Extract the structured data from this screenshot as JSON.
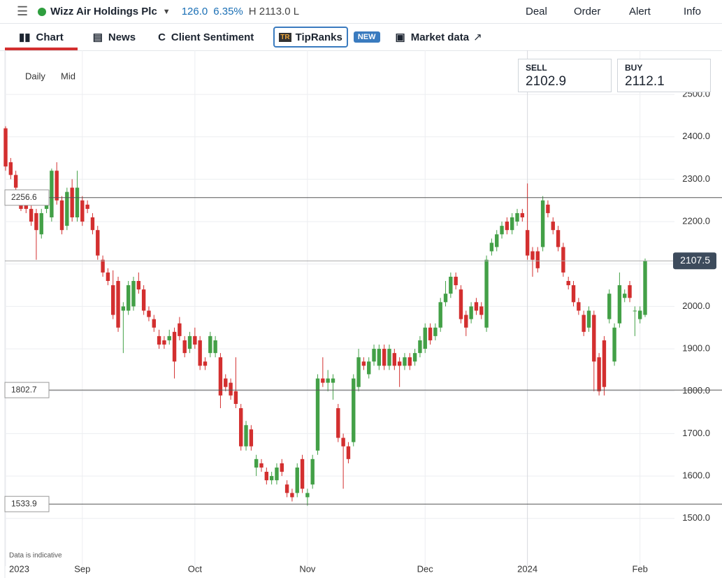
{
  "header": {
    "instrument": "Wizz Air Holdings Plc",
    "change": "126.0",
    "change_pct": "6.35%",
    "hl": "H 2113.0 L",
    "actions": [
      "Deal",
      "Order",
      "Alert",
      "Info"
    ]
  },
  "tabs": [
    "Chart",
    "News",
    "Client Sentiment",
    "TipRanks",
    "NEW",
    "Market data"
  ],
  "toolbar": [
    "Daily",
    "Mid"
  ],
  "quote": {
    "sell_label": "SELL",
    "sell": "2102.9",
    "buy_label": "BUY",
    "buy": "2112.1"
  },
  "note": "Data is indicative",
  "chart_data": {
    "type": "candlestick",
    "ylim": [
      1404,
      2599
    ],
    "yticks": [
      {
        "value": 1500,
        "label": "1500.0"
      },
      {
        "value": 1600,
        "label": "1600.0"
      },
      {
        "value": 1700,
        "label": "1700.0"
      },
      {
        "value": 1800,
        "label": "1800.0"
      },
      {
        "value": 1900,
        "label": "1900.0"
      },
      {
        "value": 2000,
        "label": "2000.0"
      },
      {
        "value": 2100,
        "label": "2100.0"
      },
      {
        "value": 2200,
        "label": "2200.0"
      },
      {
        "value": 2300,
        "label": "2300.0"
      },
      {
        "value": 2400,
        "label": "2400.0"
      },
      {
        "value": 2500,
        "label": "2500.0"
      }
    ],
    "xlim": [
      -1,
      140
    ],
    "xticks": [
      {
        "value": 0,
        "label": "2023"
      },
      {
        "value": 15,
        "label": "Sep"
      },
      {
        "value": 37,
        "label": "Oct"
      },
      {
        "value": 59,
        "label": "Nov"
      },
      {
        "value": 82,
        "label": "Dec"
      },
      {
        "value": 102,
        "label": "2024"
      },
      {
        "value": 124,
        "label": "Feb"
      }
    ],
    "levels": [
      {
        "value": 2256.6,
        "label": "2256.6"
      },
      {
        "value": 1802.7,
        "label": "1802.7"
      },
      {
        "value": 1533.9,
        "label": "1533.9"
      }
    ],
    "last": {
      "value": 2107.5,
      "label": "2107.5"
    },
    "up_color": "#43a047",
    "down_color": "#d32f2f",
    "candles": [
      [
        2420,
        2425,
        2320,
        2330
      ],
      [
        2340,
        2350,
        2300,
        2310
      ],
      [
        2310,
        2320,
        2270,
        2280
      ],
      [
        2250,
        2260,
        2225,
        2230
      ],
      [
        2240,
        2250,
        2220,
        2230
      ],
      [
        2230,
        2240,
        2190,
        2200
      ],
      [
        2220,
        2230,
        2110,
        2180
      ],
      [
        2170,
        2230,
        2160,
        2220
      ],
      [
        2230,
        2260,
        2220,
        2250
      ],
      [
        2210,
        2325,
        2200,
        2320
      ],
      [
        2320,
        2340,
        2240,
        2250
      ],
      [
        2250,
        2260,
        2170,
        2180
      ],
      [
        2190,
        2280,
        2180,
        2270
      ],
      [
        2280,
        2300,
        2200,
        2210
      ],
      [
        2210,
        2320,
        2200,
        2280
      ],
      [
        2250,
        2260,
        2190,
        2200
      ],
      [
        2240,
        2250,
        2220,
        2230
      ],
      [
        2210,
        2220,
        2170,
        2180
      ],
      [
        2180,
        2190,
        2110,
        2120
      ],
      [
        2110,
        2120,
        2070,
        2080
      ],
      [
        2080,
        2090,
        2050,
        2060
      ],
      [
        2050,
        2085,
        1970,
        1980
      ],
      [
        2060,
        2070,
        1940,
        1950
      ],
      [
        1990,
        2010,
        1890,
        2000
      ],
      [
        1990,
        2060,
        1980,
        2050
      ],
      [
        2000,
        2070,
        1990,
        2060
      ],
      [
        2060,
        2080,
        2030,
        2040
      ],
      [
        2040,
        2050,
        1980,
        1990
      ],
      [
        1990,
        2000,
        1965,
        1975
      ],
      [
        1970,
        1980,
        1940,
        1950
      ],
      [
        1930,
        1945,
        1900,
        1910
      ],
      [
        1920,
        1930,
        1900,
        1910
      ],
      [
        1920,
        1945,
        1910,
        1930
      ],
      [
        1940,
        1950,
        1830,
        1870
      ],
      [
        1960,
        1975,
        1920,
        1930
      ],
      [
        1920,
        1930,
        1880,
        1890
      ],
      [
        1900,
        1940,
        1890,
        1930
      ],
      [
        1930,
        1950,
        1900,
        1910
      ],
      [
        1920,
        1930,
        1850,
        1860
      ],
      [
        1870,
        1880,
        1850,
        1860
      ],
      [
        1890,
        1940,
        1880,
        1930
      ],
      [
        1890,
        1930,
        1880,
        1920
      ],
      [
        1880,
        1890,
        1760,
        1790
      ],
      [
        1830,
        1840,
        1800,
        1810
      ],
      [
        1820,
        1830,
        1780,
        1790
      ],
      [
        1800,
        1880,
        1760,
        1770
      ],
      [
        1760,
        1770,
        1660,
        1670
      ],
      [
        1670,
        1730,
        1660,
        1720
      ],
      [
        1710,
        1720,
        1660,
        1670
      ],
      [
        1620,
        1650,
        1600,
        1640
      ],
      [
        1630,
        1640,
        1610,
        1620
      ],
      [
        1610,
        1620,
        1580,
        1590
      ],
      [
        1590,
        1610,
        1580,
        1600
      ],
      [
        1590,
        1630,
        1580,
        1620
      ],
      [
        1630,
        1640,
        1600,
        1610
      ],
      [
        1580,
        1590,
        1550,
        1560
      ],
      [
        1560,
        1570,
        1540,
        1550
      ],
      [
        1560,
        1630,
        1550,
        1620
      ],
      [
        1640,
        1650,
        1560,
        1570
      ],
      [
        1550,
        1570,
        1530,
        1560
      ],
      [
        1580,
        1650,
        1570,
        1640
      ],
      [
        1660,
        1840,
        1650,
        1830
      ],
      [
        1830,
        1880,
        1810,
        1820
      ],
      [
        1820,
        1850,
        1800,
        1830
      ],
      [
        1820,
        1840,
        1780,
        1830
      ],
      [
        1760,
        1770,
        1680,
        1690
      ],
      [
        1690,
        1700,
        1570,
        1670
      ],
      [
        1670,
        1680,
        1630,
        1640
      ],
      [
        1680,
        1840,
        1670,
        1830
      ],
      [
        1810,
        1900,
        1800,
        1880
      ],
      [
        1870,
        1880,
        1850,
        1860
      ],
      [
        1840,
        1880,
        1830,
        1870
      ],
      [
        1870,
        1910,
        1860,
        1900
      ],
      [
        1860,
        1910,
        1850,
        1900
      ],
      [
        1900,
        1910,
        1850,
        1860
      ],
      [
        1860,
        1910,
        1850,
        1900
      ],
      [
        1890,
        1900,
        1850,
        1860
      ],
      [
        1870,
        1880,
        1810,
        1860
      ],
      [
        1860,
        1890,
        1850,
        1880
      ],
      [
        1880,
        1890,
        1850,
        1860
      ],
      [
        1870,
        1900,
        1860,
        1890
      ],
      [
        1890,
        1930,
        1880,
        1920
      ],
      [
        1900,
        1960,
        1890,
        1950
      ],
      [
        1950,
        1960,
        1910,
        1920
      ],
      [
        1930,
        1960,
        1920,
        1950
      ],
      [
        1950,
        2020,
        1940,
        2010
      ],
      [
        2010,
        2060,
        2000,
        2030
      ],
      [
        2030,
        2080,
        2020,
        2070
      ],
      [
        2070,
        2080,
        2040,
        2050
      ],
      [
        2040,
        2050,
        1960,
        1970
      ],
      [
        1980,
        1990,
        1930,
        1950
      ],
      [
        1970,
        2010,
        1960,
        2000
      ],
      [
        2010,
        2020,
        1980,
        1990
      ],
      [
        2000,
        2010,
        1970,
        1980
      ],
      [
        1950,
        2120,
        1940,
        2110
      ],
      [
        2130,
        2160,
        2120,
        2150
      ],
      [
        2140,
        2180,
        2130,
        2170
      ],
      [
        2170,
        2200,
        2160,
        2190
      ],
      [
        2200,
        2210,
        2170,
        2180
      ],
      [
        2180,
        2220,
        2170,
        2210
      ],
      [
        2200,
        2230,
        2190,
        2220
      ],
      [
        2220,
        2230,
        2200,
        2210
      ],
      [
        2180,
        2290,
        2110,
        2120
      ],
      [
        2130,
        2140,
        2070,
        2110
      ],
      [
        2130,
        2140,
        2080,
        2090
      ],
      [
        2140,
        2260,
        2130,
        2250
      ],
      [
        2240,
        2250,
        2210,
        2220
      ],
      [
        2200,
        2210,
        2170,
        2180
      ],
      [
        2180,
        2190,
        2130,
        2140
      ],
      [
        2140,
        2150,
        2070,
        2080
      ],
      [
        2060,
        2070,
        2040,
        2050
      ],
      [
        2050,
        2060,
        2000,
        2010
      ],
      [
        2010,
        2020,
        1980,
        1990
      ],
      [
        1980,
        1990,
        1930,
        1940
      ],
      [
        1950,
        2000,
        1940,
        1990
      ],
      [
        1980,
        1990,
        1800,
        1870
      ],
      [
        1880,
        1890,
        1790,
        1800
      ],
      [
        1920,
        1930,
        1790,
        1810
      ],
      [
        1970,
        2040,
        1960,
        2030
      ],
      [
        1870,
        1960,
        1860,
        1950
      ],
      [
        1960,
        2080,
        1950,
        2050
      ],
      [
        2020,
        2040,
        2010,
        2030
      ],
      [
        2050,
        2060,
        2010,
        2020
      ],
      [
        1990,
        2000,
        1930,
        1990
      ],
      [
        1970,
        2000,
        1960,
        1990
      ],
      [
        1980,
        2113,
        1975,
        2107.5
      ]
    ]
  }
}
